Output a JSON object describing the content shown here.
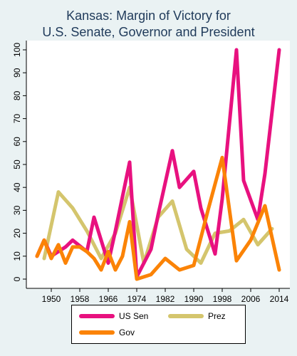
{
  "chart_data": {
    "type": "line",
    "title_line1": "Kansas: Margin of Victory for",
    "title_line2": "U.S. Senate, Governor and President",
    "xlabel": "",
    "ylabel": "",
    "xlim": [
      1945,
      2016
    ],
    "ylim": [
      0,
      100
    ],
    "x_ticks": [
      1950,
      1958,
      1966,
      1974,
      1982,
      1990,
      1998,
      2006,
      2014
    ],
    "y_ticks": [
      0,
      10,
      20,
      30,
      40,
      50,
      60,
      70,
      80,
      90,
      100
    ],
    "grid": false,
    "legend_position": "bottom",
    "series": [
      {
        "name": "US Sen",
        "color": "#e8117f",
        "x": [
          1946,
          1948,
          1950,
          1954,
          1956,
          1960,
          1962,
          1966,
          1968,
          1972,
          1974,
          1978,
          1980,
          1984,
          1986,
          1990,
          1992,
          1996,
          1998,
          2002,
          2004,
          2008,
          2010,
          2014
        ],
        "y": [
          10,
          17,
          10,
          14,
          17,
          12,
          27,
          7,
          21,
          51,
          1,
          13,
          28,
          56,
          40,
          47,
          31,
          11,
          35,
          100,
          43,
          26,
          46,
          100
        ]
      },
      {
        "name": "Prez",
        "color": "#d4c56d",
        "x": [
          1948,
          1952,
          1956,
          1960,
          1964,
          1968,
          1972,
          1976,
          1980,
          1984,
          1988,
          1992,
          1996,
          2000,
          2004,
          2008,
          2012
        ],
        "y": [
          9,
          38,
          31,
          21,
          9,
          20,
          40,
          7,
          27,
          34,
          13,
          7,
          20,
          21,
          26,
          15,
          22
        ]
      },
      {
        "name": "Gov",
        "color": "#fb8306",
        "x": [
          1946,
          1948,
          1950,
          1952,
          1954,
          1956,
          1958,
          1960,
          1962,
          1964,
          1966,
          1968,
          1970,
          1972,
          1974,
          1978,
          1982,
          1986,
          1990,
          1994,
          1998,
          2002,
          2006,
          2010,
          2014
        ],
        "y": [
          10,
          17,
          9,
          15,
          7,
          14,
          14,
          12,
          9,
          4,
          12,
          4,
          10,
          25,
          0,
          2,
          9,
          4,
          6,
          30,
          53,
          8,
          17,
          32,
          4
        ]
      }
    ]
  }
}
